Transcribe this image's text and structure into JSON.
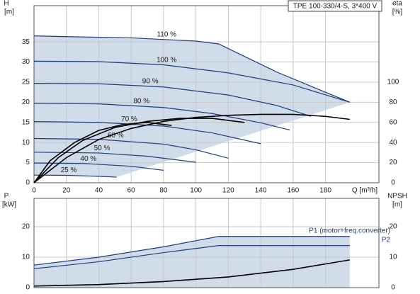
{
  "chart_data": [
    {
      "type": "line",
      "title": "TPE 100-330/4-S, 3*400 V",
      "ylabel": "H",
      "yunit": "[m]",
      "y2label": "eta",
      "y2unit": "[%]",
      "xlabel": "Q [m³/h]",
      "xlim": [
        0,
        213
      ],
      "xticks": [
        0,
        20,
        40,
        60,
        80,
        100,
        120,
        140,
        160,
        180
      ],
      "ylim": [
        0,
        44
      ],
      "yticks": [
        0,
        5,
        10,
        15,
        20,
        25,
        30,
        35
      ],
      "y2lim": [
        0,
        176
      ],
      "y2ticks": [
        0,
        20,
        40,
        60,
        80,
        100
      ],
      "grid": true,
      "fill_color": "#c9d6e8",
      "series": [
        {
          "name": "110 %",
          "color": "#1f3c78",
          "x": [
            0,
            20,
            60,
            100,
            114,
            150,
            195
          ],
          "values": [
            36.5,
            36.3,
            36,
            35.2,
            34.5,
            27.5,
            20
          ]
        },
        {
          "name": "100 %",
          "color": "#1f3c78",
          "x": [
            0,
            40,
            80,
            120,
            160,
            195
          ],
          "values": [
            30.2,
            30.1,
            29.3,
            27.3,
            24.3,
            20
          ]
        },
        {
          "name": "90 %",
          "color": "#1f3c78",
          "x": [
            0,
            40,
            80,
            120,
            150,
            171
          ],
          "values": [
            24.7,
            24.6,
            23.8,
            21.8,
            19.2,
            16.5
          ]
        },
        {
          "name": "80 %",
          "color": "#1f3c78",
          "x": [
            0,
            40,
            80,
            110,
            140,
            158
          ],
          "values": [
            19.7,
            19.6,
            18.7,
            17.2,
            14.9,
            13.1
          ]
        },
        {
          "name": "70 %",
          "color": "#1f3c78",
          "x": [
            0,
            40,
            80,
            110,
            140
          ],
          "values": [
            15.2,
            15,
            14.1,
            12.4,
            9.7
          ]
        },
        {
          "name": "60 %",
          "color": "#1f3c78",
          "x": [
            0,
            40,
            80,
            100,
            120
          ],
          "values": [
            11,
            10.8,
            9.6,
            8.2,
            6.1
          ]
        },
        {
          "name": "50 %",
          "color": "#1f3c78",
          "x": [
            0,
            40,
            70,
            100
          ],
          "values": [
            7.6,
            7.4,
            6.6,
            5.1
          ]
        },
        {
          "name": "40 %",
          "color": "#1f3c78",
          "x": [
            0,
            30,
            60,
            80
          ],
          "values": [
            4.9,
            4.8,
            4.1,
            3.1
          ]
        },
        {
          "name": "25 %",
          "color": "#1f3c78",
          "x": [
            0,
            20,
            40,
            51
          ],
          "values": [
            1.9,
            1.85,
            1.6,
            1.4
          ]
        },
        {
          "axis": "y2",
          "color": "#000000",
          "x": [
            0,
            20,
            40,
            60,
            80,
            100,
            120,
            140,
            160,
            180,
            195
          ],
          "values": [
            0,
            25,
            43,
            54,
            61,
            65,
            67,
            68,
            68,
            66,
            63
          ]
        },
        {
          "axis": "y2",
          "color": "#000000",
          "x": [
            0,
            15,
            30,
            50,
            70,
            90,
            110,
            130
          ],
          "values": [
            0,
            25,
            42,
            55,
            61,
            64,
            64,
            60
          ]
        },
        {
          "axis": "y2",
          "color": "#000000",
          "x": [
            0,
            10,
            25,
            40,
            55,
            70,
            85
          ],
          "values": [
            0,
            22,
            40,
            52,
            58,
            60,
            57
          ]
        }
      ]
    },
    {
      "type": "line",
      "ylabel": "P",
      "yunit": "[kW]",
      "y2label": "NPSH",
      "y2unit": "[m]",
      "xlim": [
        0,
        213
      ],
      "xticks": [
        0,
        20,
        40,
        60,
        80,
        100,
        120,
        140,
        160,
        180
      ],
      "ylim": [
        0,
        29.3
      ],
      "yticks": [
        0,
        10,
        20
      ],
      "y2lim": [
        0,
        29.3
      ],
      "y2ticks": [
        0,
        10,
        20
      ],
      "grid": true,
      "fill_color": "#c9d6e8",
      "series": [
        {
          "name": "P1 (motor+freq.converter)",
          "color": "#1f3c78",
          "x": [
            0,
            40,
            80,
            114,
            150,
            195
          ],
          "values": [
            7.4,
            10,
            13.4,
            16.8,
            16.8,
            16.8
          ]
        },
        {
          "name": "P2",
          "color": "#1f3c78",
          "x": [
            0,
            40,
            80,
            114,
            150,
            195
          ],
          "values": [
            6.2,
            8.5,
            11.5,
            13.8,
            13.8,
            13.8
          ]
        },
        {
          "axis": "y2",
          "color": "#000000",
          "x": [
            0,
            40,
            80,
            120,
            160,
            195
          ],
          "values": [
            0.5,
            1,
            2,
            3.5,
            6,
            9.1
          ]
        }
      ]
    }
  ]
}
